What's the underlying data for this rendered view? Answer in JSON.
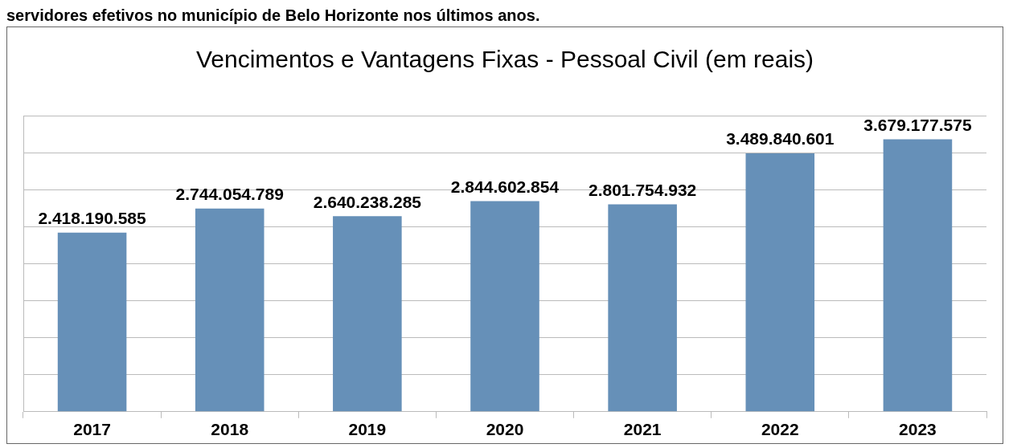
{
  "chart_data": {
    "type": "bar",
    "title": "Vencimentos e Vantagens Fixas - Pessoal Civil (em reais)",
    "annotations": [
      "servidores efetivos no município de Belo Horizonte nos últimos anos."
    ],
    "categories": [
      "2017",
      "2018",
      "2019",
      "2020",
      "2021",
      "2022",
      "2023"
    ],
    "values": [
      2418190585,
      2744054789,
      2640238285,
      2844602854,
      2801754932,
      3489840601,
      3679177575
    ],
    "value_labels": [
      "2.418.190.585",
      "2.744.054.789",
      "2.640.238.285",
      "2.844.602.854",
      "2.801.754.932",
      "3.489.840.601",
      "3.679.177.575"
    ],
    "color": "#6690b8",
    "ylim": [
      0,
      4000000000
    ],
    "yticks": [
      {
        "value": 0,
        "label": null
      },
      {
        "value": 500000000,
        "label": null
      },
      {
        "value": 1000000000,
        "label": null
      },
      {
        "value": 1500000000,
        "label": null
      },
      {
        "value": 2000000000,
        "label": null
      },
      {
        "value": 2500000000,
        "label": null
      },
      {
        "value": 3000000000,
        "label": null
      },
      {
        "value": 3500000000,
        "label": null
      },
      {
        "value": 4000000000,
        "label": null
      }
    ],
    "tick_labels": "x",
    "grid": "y",
    "legend": false
  }
}
